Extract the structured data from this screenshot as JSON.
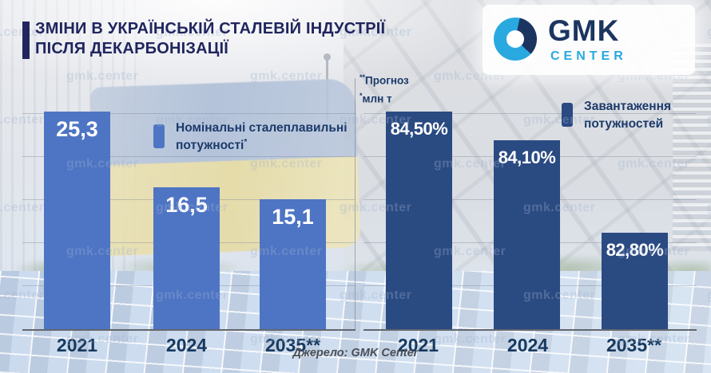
{
  "page": {
    "title_line1": "ЗМІНИ В УКРАЇНСЬКІЙ СТАЛЕВІЙ ІНДУСТРІЇ",
    "title_line2": "ПІСЛЯ ДЕКАРБОНІЗАЦІЇ"
  },
  "logo": {
    "brand": "GMK",
    "sub": "CENTER"
  },
  "watermark_text": "gmk.center",
  "notes": {
    "forecast_sup": "**",
    "forecast_text": "Прогноз",
    "unit_sup": "*",
    "unit_text": "млн т"
  },
  "source_text": "Джерело: GMK Center",
  "colors": {
    "title_navy": "#20255e",
    "bar_light_blue": "#4e74c4",
    "bar_dark_blue": "#2a4a82",
    "logo_light_blue": "#29a9df",
    "logo_navy": "#1b3560",
    "year_label": "#16395f"
  },
  "chart_data": [
    {
      "type": "bar",
      "name": "nominal-steelmaking-capacities",
      "legend_label": "Номінальні сталеплавильні потужності",
      "legend_label_sup": "*",
      "unit": "млн т",
      "categories": [
        "2021",
        "2024",
        "2035**"
      ],
      "values": [
        25.3,
        16.5,
        15.1
      ],
      "value_labels": [
        "25,3",
        "16,5",
        "15,1"
      ],
      "bar_color": "#4e74c4",
      "ylim": [
        0,
        29
      ],
      "grid": true,
      "legend_position": "top-right"
    },
    {
      "type": "bar",
      "name": "capacity-utilization",
      "legend_label": "Завантаження потужностей",
      "legend_label_sup": "",
      "unit": "%",
      "categories": [
        "2021",
        "2024",
        "2035**"
      ],
      "values": [
        84.5,
        84.1,
        82.8
      ],
      "value_labels": [
        "84,50%",
        "84,10%",
        "82,80%"
      ],
      "bar_color": "#2a4a82",
      "ylim": [
        81.45,
        84.95
      ],
      "grid": true,
      "legend_position": "top-right"
    }
  ]
}
